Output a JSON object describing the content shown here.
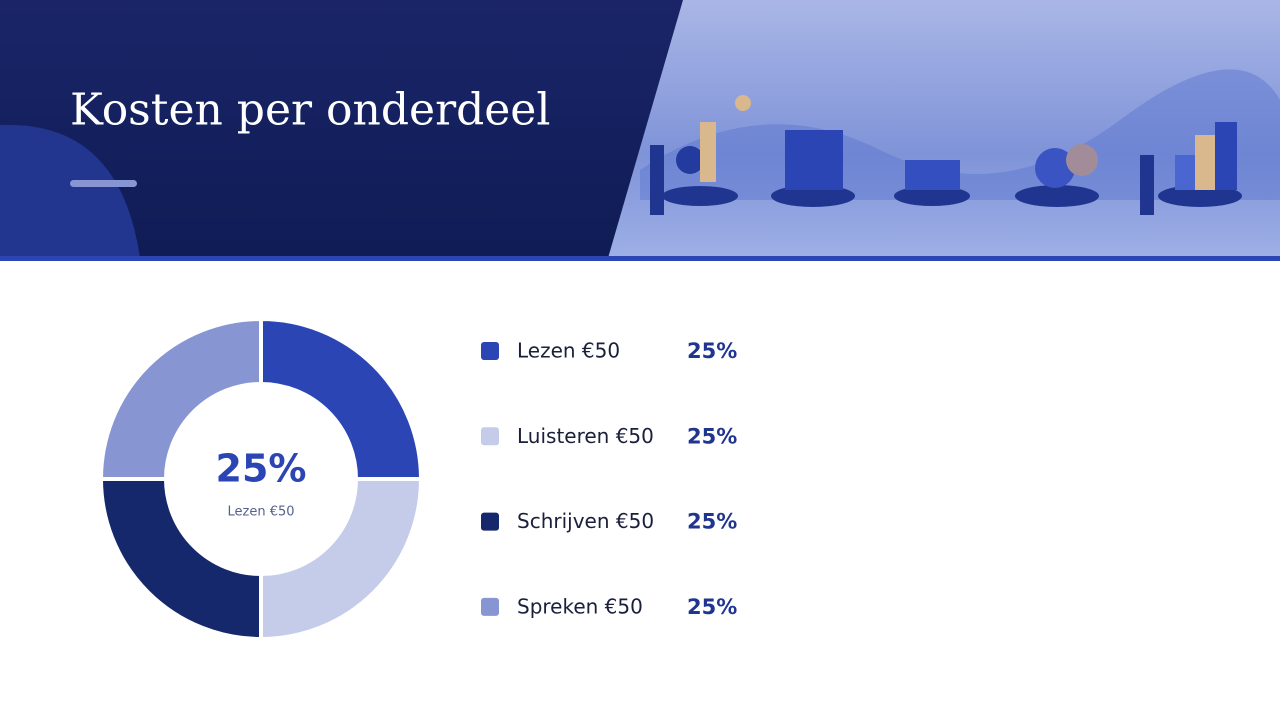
{
  "chart_data": {
    "type": "donut",
    "title": "Kosten per onderdeel",
    "categories": [
      "Lezen €50",
      "Luisteren €50",
      "Schrijven €50",
      "Spreken €50"
    ],
    "values": [
      25,
      25,
      25,
      25
    ],
    "value_labels": [
      "25%",
      "25%",
      "25%",
      "25%"
    ],
    "colors": [
      "#2b45b5",
      "#c5cce9",
      "#15286b",
      "#8796d3"
    ]
  }
}
